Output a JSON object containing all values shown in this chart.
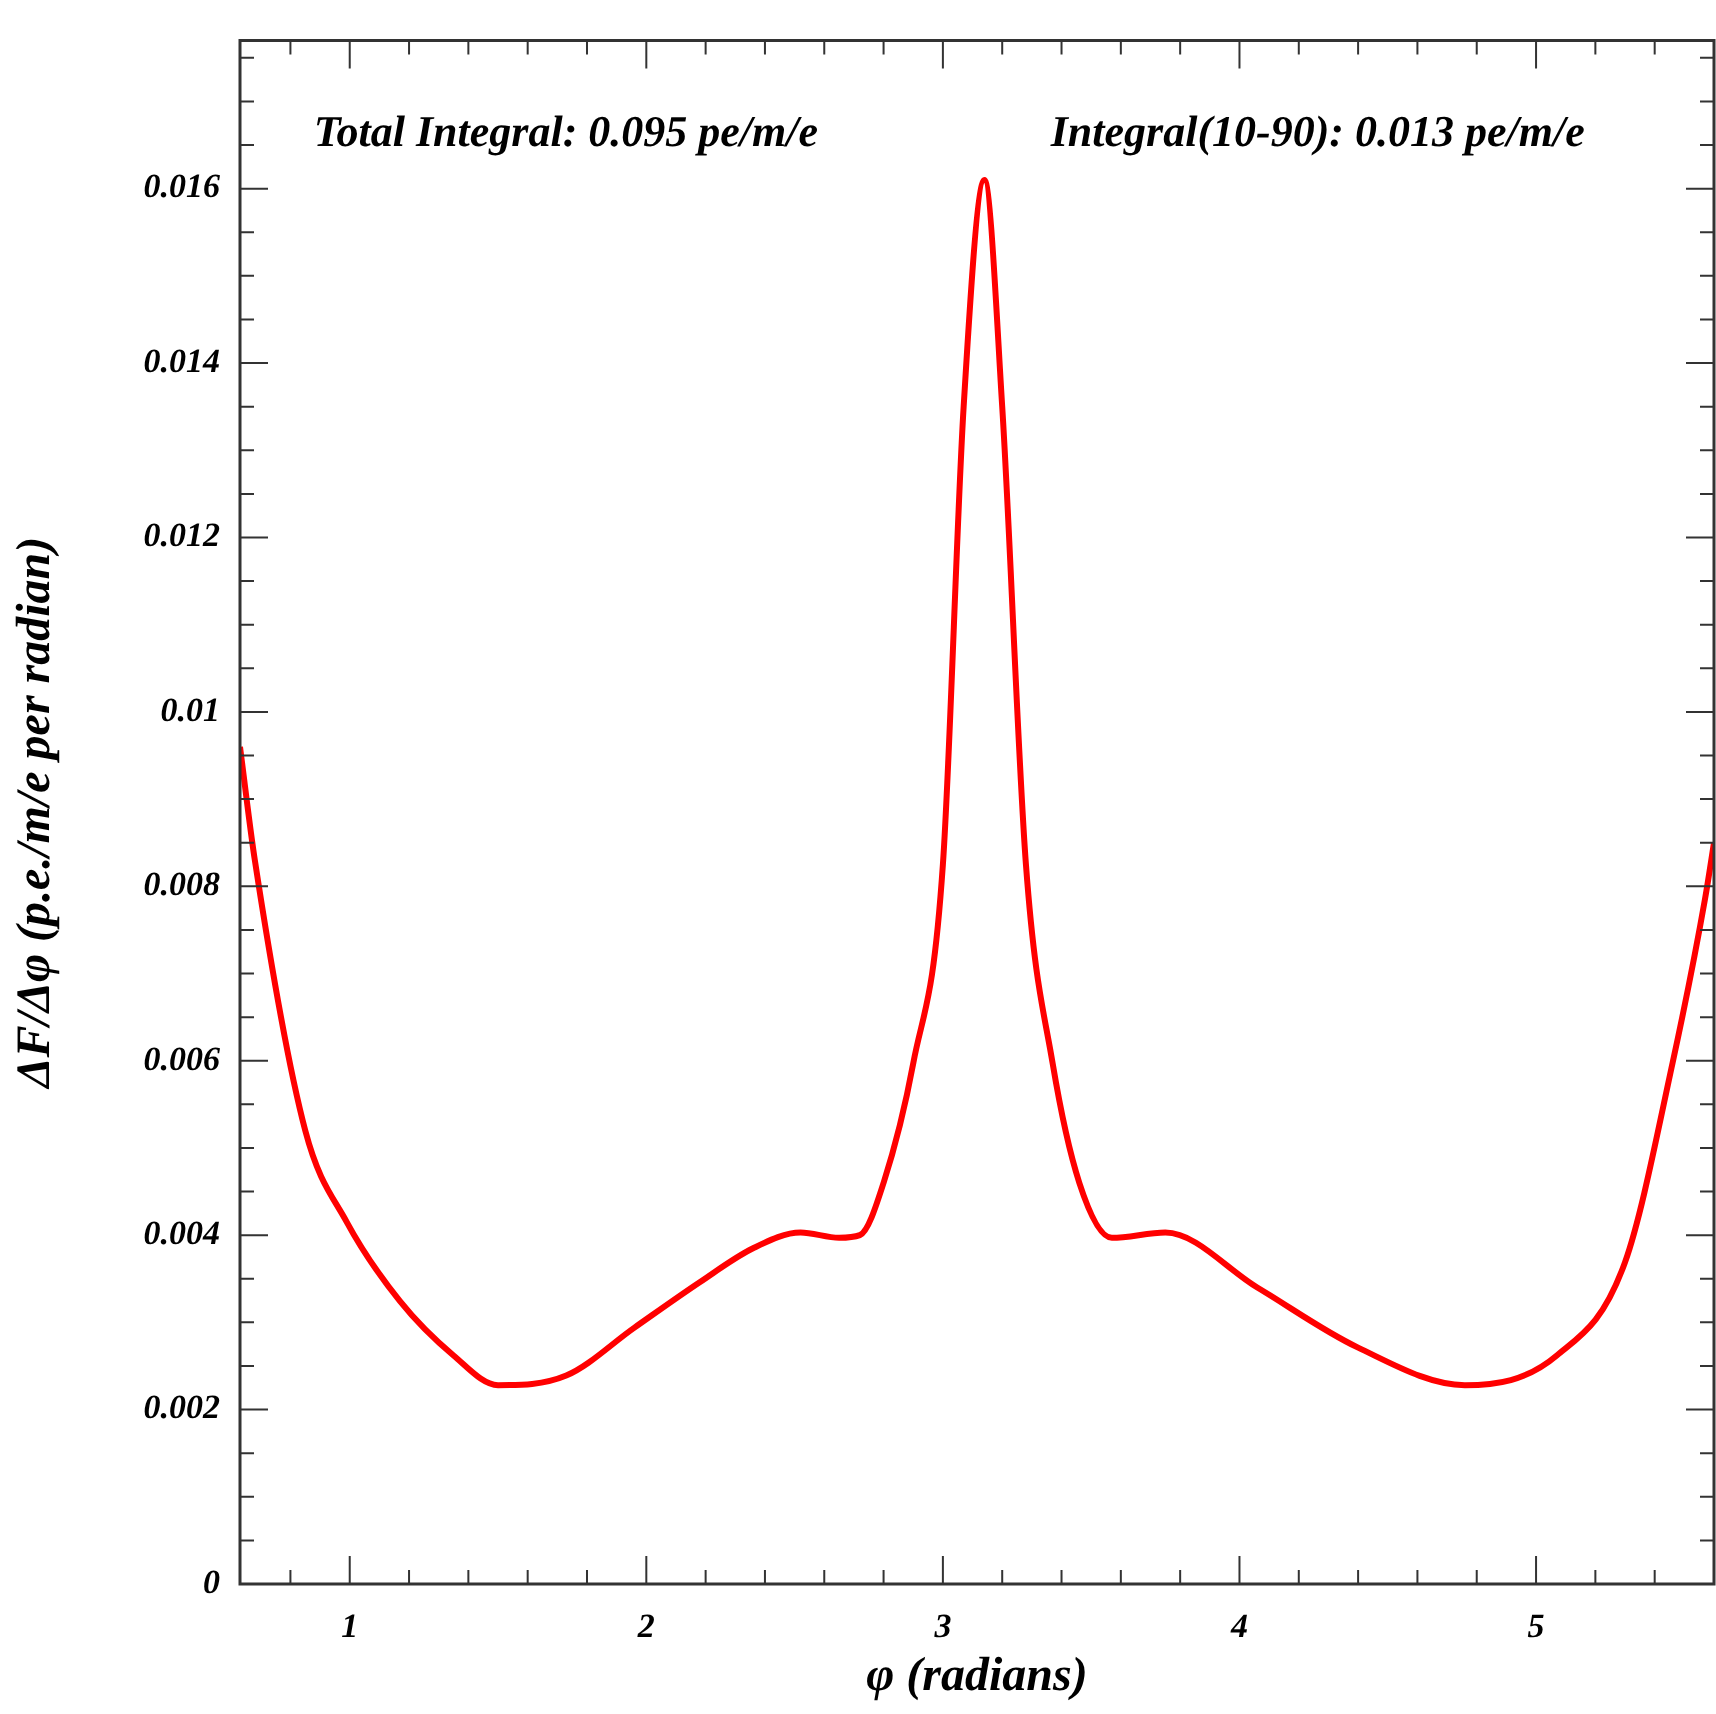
{
  "chart_data": {
    "type": "line",
    "xlabel": "φ (radians)",
    "ylabel": "ΔF/Δφ (p.e./m/e per radian)",
    "annotations": [
      "Total Integral: 0.095 pe/m/e",
      "Integral(10-90): 0.013 pe/m/e"
    ],
    "x": [
      0.63,
      0.68,
      0.85,
      0.99,
      1.17,
      1.35,
      1.5,
      1.73,
      1.96,
      2.18,
      2.36,
      2.52,
      2.65,
      2.72,
      2.8,
      2.9,
      3.0,
      3.07,
      3.14,
      3.2,
      3.28,
      3.37,
      3.46,
      3.57,
      3.75,
      4.06,
      4.4,
      4.76,
      5.07,
      5.3,
      5.46,
      5.57,
      5.6
    ],
    "series": [
      {
        "color": "#ff0000",
        "values": [
          0.0096,
          0.0083,
          0.0052,
          0.00415,
          0.00324,
          0.00262,
          0.00228,
          0.00239,
          0.00294,
          0.00346,
          0.00385,
          0.00403,
          0.00397,
          0.004,
          0.0046,
          0.00597,
          0.00825,
          0.0135,
          0.0161,
          0.0135,
          0.00825,
          0.00597,
          0.0046,
          0.00397,
          0.00403,
          0.0034,
          0.00271,
          0.00228,
          0.00262,
          0.00369,
          0.00597,
          0.00786,
          0.0085
        ]
      }
    ],
    "xlim": [
      0.63,
      5.6
    ],
    "xticks": [
      {
        "value": 0.8,
        "label": null
      },
      1,
      {
        "value": 1.2,
        "label": null
      },
      {
        "value": 1.4,
        "label": null
      },
      {
        "value": 1.6,
        "label": null
      },
      {
        "value": 1.8,
        "label": null
      },
      2,
      {
        "value": 2.2,
        "label": null
      },
      {
        "value": 2.4,
        "label": null
      },
      {
        "value": 2.6,
        "label": null
      },
      {
        "value": 2.8,
        "label": null
      },
      3,
      {
        "value": 3.2,
        "label": null
      },
      {
        "value": 3.4,
        "label": null
      },
      {
        "value": 3.6,
        "label": null
      },
      {
        "value": 3.8,
        "label": null
      },
      4,
      {
        "value": 4.2,
        "label": null
      },
      {
        "value": 4.4,
        "label": null
      },
      {
        "value": 4.6,
        "label": null
      },
      {
        "value": 4.8,
        "label": null
      },
      5,
      {
        "value": 5.2,
        "label": null
      },
      {
        "value": 5.4,
        "label": null
      }
    ],
    "ylim": [
      0,
      0.0177
    ],
    "yticks": [
      0,
      {
        "value": 0.0005,
        "label": null
      },
      {
        "value": 0.001,
        "label": null
      },
      {
        "value": 0.0015,
        "label": null
      },
      0.002,
      {
        "value": 0.0025,
        "label": null
      },
      {
        "value": 0.003,
        "label": null
      },
      {
        "value": 0.0035,
        "label": null
      },
      0.004,
      {
        "value": 0.0045,
        "label": null
      },
      {
        "value": 0.005,
        "label": null
      },
      {
        "value": 0.0055,
        "label": null
      },
      0.006,
      {
        "value": 0.0065,
        "label": null
      },
      {
        "value": 0.007,
        "label": null
      },
      {
        "value": 0.0075,
        "label": null
      },
      0.008,
      {
        "value": 0.0085,
        "label": null
      },
      {
        "value": 0.009,
        "label": null
      },
      {
        "value": 0.0095,
        "label": null
      },
      0.01,
      {
        "value": 0.0105,
        "label": null
      },
      {
        "value": 0.011,
        "label": null
      },
      {
        "value": 0.0115,
        "label": null
      },
      0.012,
      {
        "value": 0.0125,
        "label": null
      },
      {
        "value": 0.013,
        "label": null
      },
      {
        "value": 0.0135,
        "label": null
      },
      0.014,
      {
        "value": 0.0145,
        "label": null
      },
      {
        "value": 0.015,
        "label": null
      },
      {
        "value": 0.0155,
        "label": null
      },
      0.016,
      {
        "value": 0.0165,
        "label": null
      },
      {
        "value": 0.017,
        "label": null
      },
      {
        "value": 0.0175,
        "label": null
      }
    ]
  }
}
